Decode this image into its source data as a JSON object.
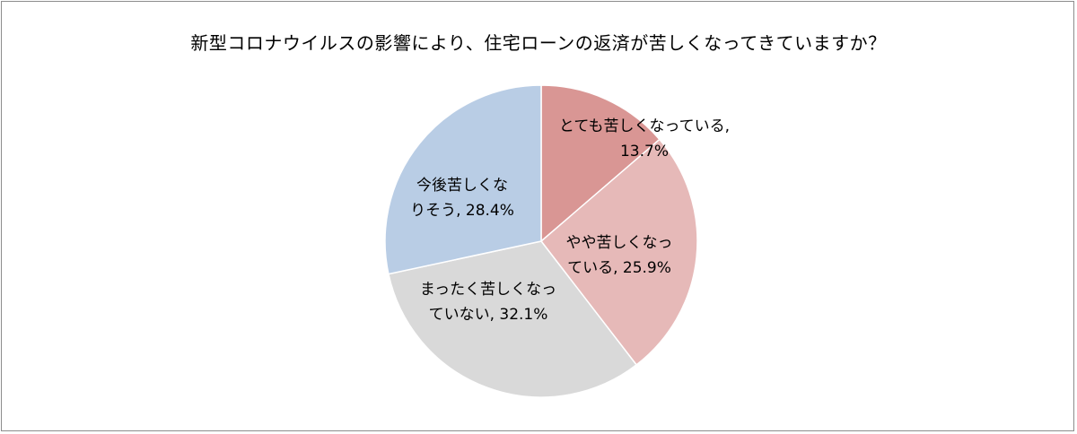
{
  "chart_data": {
    "type": "pie",
    "title": "新型コロナウイルスの影響により、住宅ローンの返済が苦しくなってきていますか？",
    "slices": [
      {
        "label": "とても苦しくなっている",
        "value": 13.7,
        "label_lines": [
          "とても苦しくなっている,",
          "13.7%"
        ],
        "color": "#d99694"
      },
      {
        "label": "やや苦しくなっている",
        "value": 25.9,
        "label_lines": [
          "やや苦しくなっ",
          "ている, 25.9%"
        ],
        "color": "#e6b9b8"
      },
      {
        "label": "まったく苦しくなっていない",
        "value": 32.1,
        "label_lines": [
          "まったく苦しくなっ",
          "ていない, 32.1%"
        ],
        "color": "#d9d9d9"
      },
      {
        "label": "今後苦しくなりそう",
        "value": 28.4,
        "label_lines": [
          "今後苦しくな",
          "りそう, 28.4%"
        ],
        "color": "#b9cde5"
      }
    ],
    "start_angle": "12 o'clock",
    "direction": "clockwise",
    "legend": "none"
  }
}
